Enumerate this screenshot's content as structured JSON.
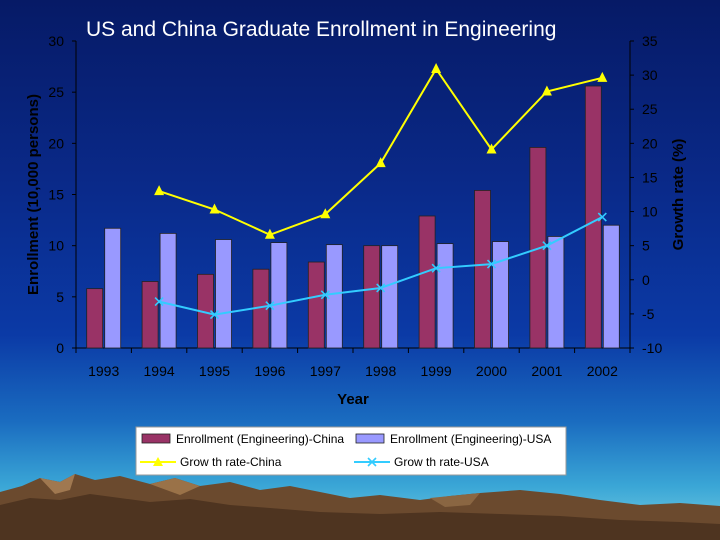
{
  "slide": {
    "title": "US and China Graduate Enrollment in Engineering"
  },
  "colors": {
    "china_bar": "#993366",
    "usa_bar": "#9999ff",
    "china_line": "#ffff00",
    "usa_line": "#33ccff",
    "axis_text": "#000000"
  },
  "chart_data": {
    "type": "bar",
    "title": "US and China Graduate Enrollment in Engineering",
    "xlabel": "Year",
    "ylabel": "Enrollment (10,000 persons)",
    "y2label": "Growth rate (%)",
    "categories": [
      "1993",
      "1994",
      "1995",
      "1996",
      "1997",
      "1998",
      "1999",
      "2000",
      "2001",
      "2002"
    ],
    "ylim": [
      0,
      30
    ],
    "y_ticks": [
      0,
      5,
      10,
      15,
      20,
      25,
      30
    ],
    "y2lim": [
      -10,
      35
    ],
    "y2_ticks": [
      -10,
      -5,
      0,
      5,
      10,
      15,
      20,
      25,
      30,
      35
    ],
    "series": [
      {
        "name": "Enrollment (Engineering)-China",
        "type": "bar",
        "axis": "left",
        "values": [
          5.8,
          6.5,
          7.2,
          7.7,
          8.4,
          10.0,
          12.9,
          15.4,
          19.6,
          25.6
        ]
      },
      {
        "name": "Enrollment (Engineering)-USA",
        "type": "bar",
        "axis": "left",
        "values": [
          11.7,
          11.2,
          10.6,
          10.3,
          10.1,
          10.0,
          10.2,
          10.4,
          10.9,
          12.0
        ]
      },
      {
        "name": "Grow th rate-China",
        "type": "line",
        "axis": "right",
        "marker": "triangle",
        "values": [
          null,
          13.0,
          10.3,
          6.6,
          9.6,
          17.1,
          30.9,
          19.1,
          27.6,
          29.6
        ]
      },
      {
        "name": "Grow th rate-USA",
        "type": "line",
        "axis": "right",
        "marker": "x",
        "values": [
          null,
          -3.2,
          -5.1,
          -3.8,
          -2.2,
          -1.2,
          1.7,
          2.3,
          5.0,
          9.2
        ]
      }
    ],
    "grid": false,
    "legend_position": "bottom"
  }
}
